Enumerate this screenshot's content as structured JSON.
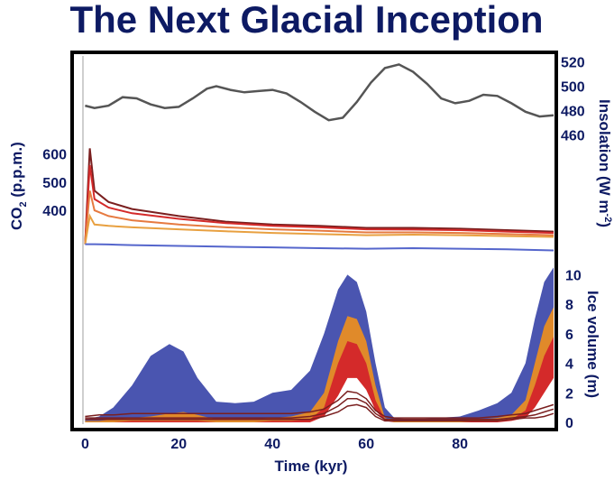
{
  "title": "The Next Glacial Inception",
  "colors": {
    "text": "#0d1a63",
    "insolation": "#555555",
    "co2_blue": "#5566cc",
    "ice_blue": "#4a55b0",
    "ice_orange": "#e08a2a",
    "ice_red": "#d42a2a",
    "dark_red": "#7a1f1f"
  },
  "chart_data": [
    {
      "type": "line",
      "name": "insolation",
      "ylabel": "Insolation (W m-2)",
      "ylabel_parts": {
        "main": "Insolation (W m",
        "sup": "-2",
        "end": ")"
      },
      "ylim": [
        455,
        525
      ],
      "ticks": [
        "520",
        "500",
        "480",
        "460"
      ],
      "tick_values": [
        520,
        500,
        480,
        460
      ],
      "x": [
        0,
        2,
        5,
        8,
        11,
        14,
        17,
        20,
        23,
        26,
        28,
        31,
        34,
        37,
        40,
        43,
        46,
        49,
        52,
        55,
        58,
        61,
        64,
        67,
        70,
        73,
        76,
        79,
        82,
        85,
        88,
        91,
        94,
        97,
        100
      ],
      "y": [
        484,
        482,
        484,
        491,
        490,
        485,
        482,
        483,
        490,
        498,
        500,
        497,
        495,
        496,
        497,
        494,
        487,
        479,
        472,
        474,
        487,
        503,
        515,
        518,
        512,
        502,
        490,
        486,
        488,
        493,
        492,
        486,
        479,
        475,
        476
      ]
    },
    {
      "type": "line",
      "name": "co2",
      "ylabel": "CO2 (p.p.m.)",
      "ylabel_parts": {
        "main": "CO",
        "sub": "2",
        "end": " (p.p.m.)"
      },
      "ylim": [
        250,
        650
      ],
      "ticks": [
        "600",
        "500",
        "400"
      ],
      "tick_values": [
        600,
        500,
        400
      ],
      "x": [
        0,
        1,
        2,
        5,
        10,
        20,
        30,
        40,
        50,
        60,
        70,
        80,
        90,
        100
      ],
      "series": [
        {
          "color": "#7a1f1f",
          "values": [
            280,
            620,
            470,
            430,
            405,
            380,
            360,
            350,
            345,
            338,
            338,
            335,
            330,
            325
          ]
        },
        {
          "color": "#d42a2a",
          "values": [
            280,
            560,
            440,
            410,
            390,
            370,
            355,
            345,
            340,
            333,
            332,
            330,
            325,
            320
          ]
        },
        {
          "color": "#e67a40",
          "values": [
            280,
            470,
            400,
            380,
            365,
            350,
            340,
            333,
            328,
            322,
            322,
            320,
            316,
            312
          ]
        },
        {
          "color": "#e8a040",
          "values": [
            280,
            380,
            350,
            345,
            340,
            333,
            326,
            320,
            316,
            312,
            314,
            312,
            309,
            306
          ]
        },
        {
          "color": "#5566cc",
          "values": [
            280,
            280,
            280,
            279,
            277,
            274,
            271,
            269,
            266,
            264,
            266,
            264,
            262,
            258
          ]
        }
      ]
    },
    {
      "type": "area",
      "name": "ice_volume",
      "ylabel": "Ice volume (m)",
      "ylim": [
        0,
        11
      ],
      "ticks": [
        "10",
        "8",
        "6",
        "4",
        "2",
        "0"
      ],
      "tick_values": [
        10,
        8,
        6,
        4,
        2,
        0
      ],
      "xlabel": "Time (kyr)",
      "xlim": [
        -2,
        100
      ],
      "xticks": [
        "0",
        "20",
        "40",
        "60",
        "80"
      ],
      "xtick_values": [
        0,
        20,
        40,
        60,
        80
      ],
      "x": [
        0,
        3,
        6,
        10,
        14,
        18,
        21,
        24,
        28,
        32,
        36,
        40,
        44,
        48,
        51,
        54,
        56,
        58,
        60,
        62,
        64,
        66,
        70,
        75,
        80,
        84,
        88,
        91,
        94,
        96,
        98,
        100
      ],
      "series": [
        {
          "color": "#4a55b0",
          "values": [
            0.2,
            0.4,
            1.0,
            2.5,
            4.5,
            5.3,
            4.8,
            3.0,
            1.4,
            1.3,
            1.4,
            2.0,
            2.2,
            3.5,
            6.0,
            9.0,
            10.0,
            9.5,
            7.5,
            4.0,
            1.0,
            0.3,
            0.2,
            0.3,
            0.4,
            0.8,
            1.3,
            2.0,
            4.0,
            7.0,
            9.5,
            10.5
          ]
        },
        {
          "color": "#e08a2a",
          "values": [
            0.1,
            0.1,
            0.2,
            0.3,
            0.4,
            0.6,
            0.7,
            0.5,
            0.2,
            0.2,
            0.2,
            0.3,
            0.4,
            0.7,
            2.0,
            5.5,
            7.2,
            7.0,
            5.5,
            2.5,
            0.3,
            0.1,
            0.1,
            0.1,
            0.1,
            0.2,
            0.3,
            0.5,
            1.5,
            4.0,
            6.5,
            7.8
          ]
        },
        {
          "color": "#d42a2a",
          "values": [
            0.0,
            0.0,
            0.0,
            0.1,
            0.1,
            0.1,
            0.1,
            0.1,
            0.0,
            0.0,
            0.0,
            0.1,
            0.1,
            0.2,
            1.0,
            4.0,
            5.5,
            5.3,
            4.0,
            1.5,
            0.2,
            0.0,
            0.0,
            0.0,
            0.0,
            0.1,
            0.1,
            0.2,
            0.8,
            2.5,
            4.5,
            5.8
          ]
        },
        {
          "color": "#ffffff",
          "values": [
            0.0,
            0.0,
            0.0,
            0.0,
            0.0,
            0.0,
            0.0,
            0.0,
            0.0,
            0.0,
            0.0,
            0.0,
            0.0,
            0.0,
            0.4,
            1.8,
            3.0,
            3.0,
            2.2,
            0.8,
            0.1,
            0.0,
            0.0,
            0.0,
            0.0,
            0.0,
            0.0,
            0.1,
            0.3,
            1.0,
            2.0,
            3.0
          ]
        }
      ],
      "lines": [
        {
          "color": "#7a1f1f",
          "values": [
            0.4,
            0.5,
            0.5,
            0.6,
            0.6,
            0.6,
            0.6,
            0.6,
            0.6,
            0.6,
            0.6,
            0.6,
            0.6,
            0.7,
            0.9,
            1.5,
            2.1,
            2.0,
            1.6,
            0.8,
            0.4,
            0.3,
            0.3,
            0.3,
            0.3,
            0.3,
            0.4,
            0.5,
            0.6,
            0.8,
            1.0,
            1.2
          ]
        },
        {
          "color": "#7a1f1f",
          "values": [
            0.3,
            0.3,
            0.3,
            0.3,
            0.3,
            0.3,
            0.3,
            0.3,
            0.3,
            0.3,
            0.3,
            0.3,
            0.3,
            0.4,
            0.6,
            1.1,
            1.6,
            1.6,
            1.3,
            0.6,
            0.2,
            0.2,
            0.2,
            0.2,
            0.2,
            0.2,
            0.2,
            0.3,
            0.4,
            0.5,
            0.7,
            0.9
          ]
        },
        {
          "color": "#7a1f1f",
          "values": [
            0.2,
            0.2,
            0.2,
            0.2,
            0.2,
            0.2,
            0.2,
            0.2,
            0.2,
            0.2,
            0.2,
            0.2,
            0.2,
            0.2,
            0.4,
            0.7,
            1.1,
            1.2,
            1.0,
            0.4,
            0.1,
            0.1,
            0.1,
            0.1,
            0.1,
            0.1,
            0.1,
            0.2,
            0.3,
            0.3,
            0.4,
            0.6
          ]
        }
      ]
    }
  ]
}
